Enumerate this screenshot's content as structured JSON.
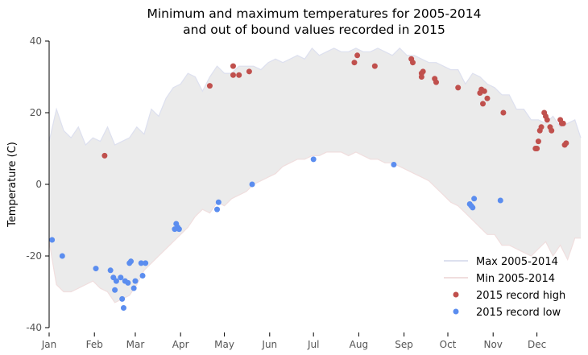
{
  "chart_data": {
    "type": "scatter",
    "title": [
      "Minimum and maximum temperatures for 2005-2014",
      "and out of bound values recorded in 2015"
    ],
    "xlabel": "",
    "ylabel": "Temperature (C)",
    "xlim": [
      1,
      365
    ],
    "ylim": [
      -40,
      40
    ],
    "x_ticks": [
      {
        "label": "Jan",
        "day": 1
      },
      {
        "label": "Feb",
        "day": 32
      },
      {
        "label": "Mar",
        "day": 60
      },
      {
        "label": "Apr",
        "day": 91
      },
      {
        "label": "May",
        "day": 121
      },
      {
        "label": "Jun",
        "day": 152
      },
      {
        "label": "Jul",
        "day": 182
      },
      {
        "label": "Aug",
        "day": 213
      },
      {
        "label": "Sep",
        "day": 244
      },
      {
        "label": "Oct",
        "day": 274
      },
      {
        "label": "Nov",
        "day": 305
      },
      {
        "label": "Dec",
        "day": 335
      }
    ],
    "y_ticks": [
      40,
      20,
      0,
      -20,
      -40
    ],
    "legend_position": "bottom-right",
    "colors": {
      "band": "#ebebeb",
      "max_line": "#dde0ef",
      "min_line": "#f0dede",
      "record_high": "#c0504d",
      "record_low": "#5b8def"
    },
    "series": [
      {
        "name": "Max 2005-2014",
        "kind": "line",
        "x": [
          1,
          6,
          11,
          16,
          21,
          26,
          31,
          36,
          41,
          46,
          51,
          56,
          61,
          66,
          71,
          76,
          81,
          86,
          91,
          96,
          101,
          106,
          111,
          116,
          121,
          126,
          131,
          136,
          141,
          146,
          151,
          156,
          161,
          166,
          171,
          176,
          181,
          186,
          191,
          196,
          201,
          206,
          211,
          216,
          221,
          226,
          231,
          236,
          241,
          246,
          251,
          256,
          261,
          266,
          271,
          276,
          281,
          286,
          291,
          296,
          301,
          306,
          311,
          316,
          321,
          326,
          331,
          336,
          341,
          346,
          351,
          356,
          361,
          365
        ],
        "y": [
          12,
          21,
          15,
          13,
          16,
          11,
          13,
          12,
          16,
          11,
          12,
          13,
          16,
          14,
          21,
          19,
          24,
          27,
          28,
          31,
          30,
          26,
          30,
          33,
          31,
          31,
          33,
          33,
          33,
          32,
          34,
          35,
          34,
          35,
          36,
          35,
          38,
          36,
          37,
          38,
          37,
          37,
          38,
          37,
          37,
          38,
          37,
          36,
          38,
          36,
          36,
          35,
          34,
          34,
          33,
          32,
          32,
          28,
          31,
          30,
          28,
          27,
          25,
          25,
          21,
          21,
          18,
          18,
          17,
          19,
          16,
          17,
          18,
          13
        ]
      },
      {
        "name": "Min 2005-2014",
        "kind": "line",
        "x": [
          1,
          6,
          11,
          16,
          21,
          26,
          31,
          36,
          41,
          46,
          51,
          56,
          61,
          66,
          71,
          76,
          81,
          86,
          91,
          96,
          101,
          106,
          111,
          116,
          121,
          126,
          131,
          136,
          141,
          146,
          151,
          156,
          161,
          166,
          171,
          176,
          181,
          186,
          191,
          196,
          201,
          206,
          211,
          216,
          221,
          226,
          231,
          236,
          241,
          246,
          251,
          256,
          261,
          266,
          271,
          276,
          281,
          286,
          291,
          296,
          301,
          306,
          311,
          316,
          321,
          326,
          331,
          336,
          341,
          346,
          351,
          356,
          361,
          365
        ],
        "y": [
          -16,
          -28,
          -30,
          -30,
          -29,
          -28,
          -27,
          -29,
          -30,
          -33,
          -32,
          -31,
          -28,
          -24,
          -22,
          -20,
          -18,
          -16,
          -14,
          -12,
          -9,
          -7,
          -8,
          -5,
          -6,
          -4,
          -3,
          -2,
          0,
          1,
          2,
          3,
          5,
          6,
          7,
          7,
          8,
          8,
          9,
          9,
          9,
          8,
          9,
          8,
          7,
          7,
          6,
          6,
          5,
          4,
          3,
          2,
          1,
          -1,
          -3,
          -5,
          -6,
          -8,
          -10,
          -12,
          -14,
          -14,
          -17,
          -17,
          -18,
          -19,
          -20,
          -18,
          -16,
          -20,
          -17,
          -21,
          -15,
          -15
        ]
      },
      {
        "name": "2015 record high",
        "kind": "scatter",
        "points": [
          [
            39,
            8
          ],
          [
            111,
            27.5
          ],
          [
            127,
            33
          ],
          [
            127,
            30.5
          ],
          [
            131,
            30.5
          ],
          [
            138,
            31.5
          ],
          [
            210,
            34
          ],
          [
            212,
            36
          ],
          [
            224,
            33
          ],
          [
            249,
            35
          ],
          [
            250,
            34
          ],
          [
            256,
            31
          ],
          [
            256,
            30
          ],
          [
            257,
            31.5
          ],
          [
            265,
            29.5
          ],
          [
            266,
            28.5
          ],
          [
            281,
            27
          ],
          [
            297,
            26.5
          ],
          [
            296,
            25.5
          ],
          [
            299,
            26
          ],
          [
            298,
            22.5
          ],
          [
            301,
            24
          ],
          [
            312,
            20
          ],
          [
            334,
            10
          ],
          [
            335,
            10
          ],
          [
            336,
            12
          ],
          [
            337,
            15
          ],
          [
            338,
            16
          ],
          [
            340,
            20
          ],
          [
            341,
            19
          ],
          [
            342,
            18
          ],
          [
            344,
            16
          ],
          [
            345,
            15
          ],
          [
            351,
            18
          ],
          [
            352,
            17
          ],
          [
            353,
            17
          ],
          [
            354,
            11
          ],
          [
            355,
            11.5
          ]
        ]
      },
      {
        "name": "2015 record low",
        "kind": "scatter",
        "points": [
          [
            3,
            -15.5
          ],
          [
            10,
            -20
          ],
          [
            33,
            -23.5
          ],
          [
            43,
            -24
          ],
          [
            45,
            -26
          ],
          [
            46,
            -29.5
          ],
          [
            47,
            -27
          ],
          [
            50,
            -26
          ],
          [
            51,
            -32
          ],
          [
            52,
            -34.5
          ],
          [
            53,
            -27
          ],
          [
            55,
            -27.5
          ],
          [
            56,
            -22
          ],
          [
            57,
            -21.5
          ],
          [
            59,
            -29
          ],
          [
            60,
            -27
          ],
          [
            64,
            -22
          ],
          [
            65,
            -25.5
          ],
          [
            67,
            -22
          ],
          [
            87,
            -12.5
          ],
          [
            88,
            -11
          ],
          [
            89,
            -12
          ],
          [
            90,
            -12.5
          ],
          [
            116,
            -7
          ],
          [
            117,
            -5
          ],
          [
            140,
            0
          ],
          [
            182,
            7
          ],
          [
            237,
            5.5
          ],
          [
            289,
            -5.5
          ],
          [
            290,
            -6
          ],
          [
            291,
            -6.5
          ],
          [
            292,
            -4
          ],
          [
            310,
            -4.5
          ]
        ]
      }
    ]
  }
}
